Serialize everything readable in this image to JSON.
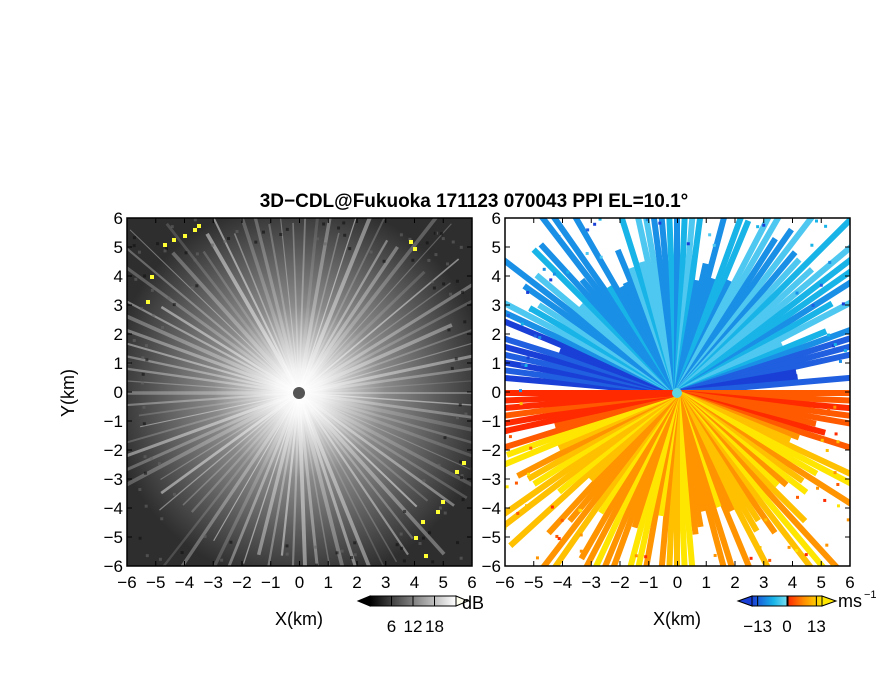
{
  "chart_data": [
    {
      "type": "heatmap",
      "panel": "left",
      "product": "backscatter intensity (grayscale)",
      "title": "3D−CDL@Fukuoka 171123 070043 PPI EL=10.1°",
      "xlabel": "X(km)",
      "ylabel": "Y(km)",
      "xlim": [
        -6,
        6
      ],
      "ylim": [
        -6,
        6
      ],
      "x_ticks": [
        "−6",
        "−5",
        "−4",
        "−3",
        "−2",
        "−1",
        "0",
        "1",
        "2",
        "3",
        "4",
        "5",
        "6"
      ],
      "y_ticks": [
        "6",
        "5",
        "4",
        "3",
        "2",
        "1",
        "0",
        "−1",
        "−2",
        "−3",
        "−4",
        "−5",
        "−6"
      ],
      "colorbar": {
        "unit": "dB",
        "tick_labels": [
          "6",
          "12",
          "18"
        ],
        "ticks": [
          6,
          12,
          18
        ],
        "colors": [
          "#000000",
          "#ffffff"
        ]
      },
      "highlight_color": "#ffff33"
    },
    {
      "type": "heatmap",
      "panel": "right",
      "product": "radial velocity",
      "xlabel": "X(km)",
      "xlim": [
        -6,
        6
      ],
      "ylim": [
        -6,
        6
      ],
      "x_ticks": [
        "−6",
        "−5",
        "−4",
        "−3",
        "−2",
        "−1",
        "0",
        "1",
        "2",
        "3",
        "4",
        "5",
        "6"
      ],
      "y_ticks": [
        "6",
        "5",
        "4",
        "3",
        "2",
        "1",
        "0",
        "−1",
        "−2",
        "−3",
        "−4",
        "−5",
        "−6"
      ],
      "colorbar": {
        "unit": "ms",
        "unit_exp": "−1",
        "tick_labels": [
          "−13",
          "0",
          "13"
        ],
        "ticks": [
          -13,
          0,
          13
        ],
        "colors": [
          "#1a3fd6",
          "#18b4e8",
          "#7fe0f0",
          "#ff2a00",
          "#ff9400",
          "#ffe600"
        ]
      }
    }
  ]
}
